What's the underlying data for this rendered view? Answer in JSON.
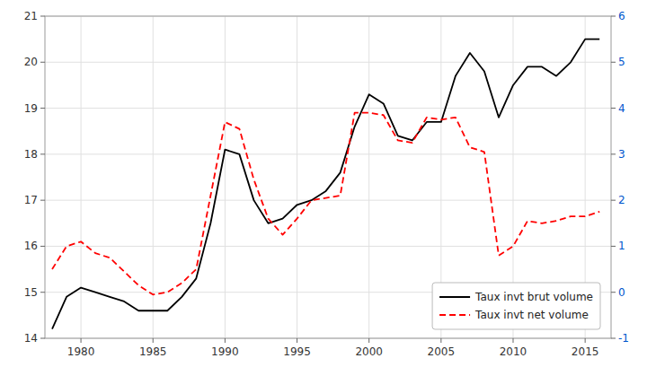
{
  "chart_data": {
    "type": "line",
    "x": [
      1978,
      1979,
      1980,
      1981,
      1982,
      1983,
      1984,
      1985,
      1986,
      1987,
      1988,
      1989,
      1990,
      1991,
      1992,
      1993,
      1994,
      1995,
      1996,
      1997,
      1998,
      1999,
      2000,
      2001,
      2002,
      2003,
      2004,
      2005,
      2006,
      2007,
      2008,
      2009,
      2010,
      2011,
      2012,
      2013,
      2014,
      2015,
      2016
    ],
    "series": [
      {
        "name": "Taux invt brut volume",
        "color": "#000000",
        "line_style": "solid",
        "values": [
          14.2,
          14.9,
          15.1,
          15.0,
          14.9,
          14.8,
          14.6,
          14.6,
          14.6,
          14.9,
          15.3,
          16.5,
          18.1,
          18.0,
          17.0,
          16.5,
          16.6,
          16.9,
          17.0,
          17.2,
          17.6,
          18.6,
          19.3,
          19.1,
          18.4,
          18.3,
          18.7,
          18.7,
          19.7,
          20.2,
          19.8,
          18.8,
          19.5,
          19.9,
          19.9,
          19.7,
          20.0,
          20.5,
          20.5
        ]
      },
      {
        "name": "Taux invt net volume",
        "color": "#ff0000",
        "line_style": "dashed",
        "axis": "y2",
        "values": [
          0.5,
          1.0,
          1.1,
          0.85,
          0.75,
          0.45,
          0.15,
          -0.05,
          0.0,
          0.2,
          0.5,
          2.1,
          3.7,
          3.55,
          2.45,
          1.6,
          1.25,
          1.6,
          2.0,
          2.05,
          2.1,
          3.9,
          3.9,
          3.85,
          3.3,
          3.25,
          3.8,
          3.75,
          3.8,
          3.15,
          3.05,
          0.8,
          1.0,
          1.55,
          1.5,
          1.55,
          1.65,
          1.65,
          1.75
        ]
      }
    ],
    "xlim": [
      1977.5,
      2016.8
    ],
    "xticks": [
      1980,
      1985,
      1990,
      1995,
      2000,
      2005,
      2010,
      2015
    ],
    "ylim": [
      14,
      21
    ],
    "yticks": [
      14,
      15,
      16,
      17,
      18,
      19,
      20,
      21
    ],
    "y2lim": [
      -1,
      6
    ],
    "y2ticks": [
      -1,
      0,
      1,
      2,
      3,
      4,
      5,
      6
    ],
    "grid": true,
    "legend": "lower right"
  }
}
